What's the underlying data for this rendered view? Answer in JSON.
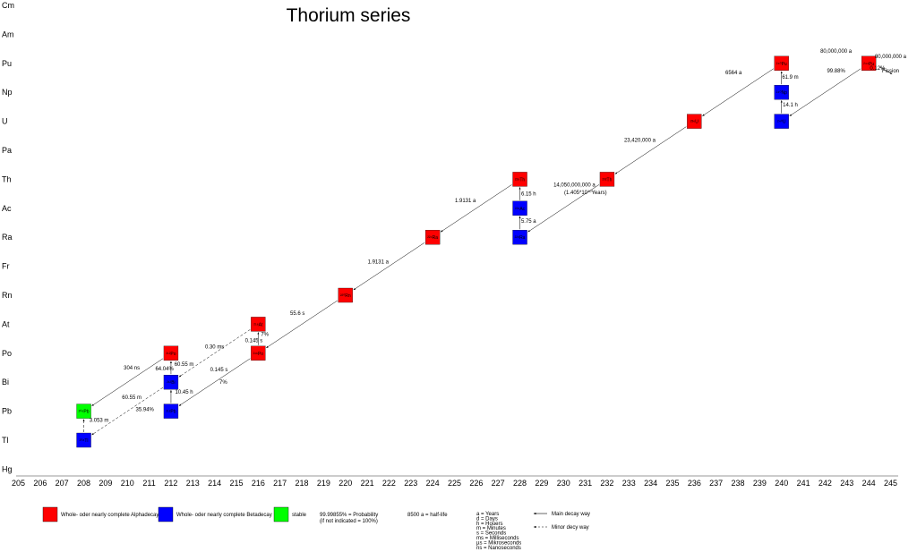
{
  "title": "Thorium series",
  "colors": {
    "alpha": "#ff0000",
    "beta": "#0000ff",
    "stable": "#00ff00",
    "fission_text": "#ff00cc"
  },
  "elements": [
    "Cm",
    "Am",
    "Pu",
    "Np",
    "U",
    "Pa",
    "Th",
    "Ac",
    "Ra",
    "Fr",
    "Rn",
    "At",
    "Po",
    "Bi",
    "Pb",
    "Tl",
    "Hg"
  ],
  "mass_numbers": [
    205,
    206,
    207,
    208,
    209,
    210,
    211,
    212,
    213,
    214,
    215,
    216,
    217,
    218,
    219,
    220,
    221,
    222,
    223,
    224,
    225,
    226,
    227,
    228,
    229,
    230,
    231,
    232,
    233,
    234,
    235,
    236,
    237,
    238,
    239,
    240,
    241,
    242,
    243,
    244,
    245
  ],
  "nuclides": [
    {
      "mass": 244,
      "el": "Pu",
      "kind": "alpha",
      "label": "²⁴⁴Pu"
    },
    {
      "mass": 240,
      "el": "Pu",
      "kind": "alpha",
      "label": "²⁴⁰Pu"
    },
    {
      "mass": 240,
      "el": "Np",
      "kind": "beta",
      "label": "²⁴⁰Np"
    },
    {
      "mass": 240,
      "el": "U",
      "kind": "beta",
      "label": "²⁴⁰U"
    },
    {
      "mass": 236,
      "el": "U",
      "kind": "alpha",
      "label": "²³⁶U"
    },
    {
      "mass": 232,
      "el": "Th",
      "kind": "alpha",
      "label": "²³²Th"
    },
    {
      "mass": 228,
      "el": "Th",
      "kind": "alpha",
      "label": "²²⁸Th"
    },
    {
      "mass": 228,
      "el": "Ac",
      "kind": "beta",
      "label": "²²⁸Ac"
    },
    {
      "mass": 228,
      "el": "Ra",
      "kind": "beta",
      "label": "²²⁸Ra"
    },
    {
      "mass": 224,
      "el": "Ra",
      "kind": "alpha",
      "label": "²²⁴Ra"
    },
    {
      "mass": 220,
      "el": "Rn",
      "kind": "alpha",
      "label": "²²⁰Rn"
    },
    {
      "mass": 216,
      "el": "Po",
      "kind": "alpha",
      "label": "²¹⁶Po"
    },
    {
      "mass": 216,
      "el": "At",
      "kind": "alpha",
      "label": "²¹⁶At"
    },
    {
      "mass": 212,
      "el": "Po",
      "kind": "alpha",
      "label": "²¹²Po"
    },
    {
      "mass": 212,
      "el": "Bi",
      "kind": "beta",
      "label": "²¹²Bi"
    },
    {
      "mass": 212,
      "el": "Pb",
      "kind": "beta",
      "label": "²¹²Pb"
    },
    {
      "mass": 208,
      "el": "Pb",
      "kind": "stable",
      "label": "²⁰⁸Pb"
    },
    {
      "mass": 208,
      "el": "Tl",
      "kind": "beta",
      "label": "²⁰⁸Tl"
    }
  ],
  "decays": [
    {
      "from": [
        244,
        "Pu"
      ],
      "to": [
        240,
        "U"
      ],
      "style": "main"
    },
    {
      "from": [
        240,
        "U"
      ],
      "to": [
        240,
        "Np"
      ],
      "style": "main"
    },
    {
      "from": [
        240,
        "Np"
      ],
      "to": [
        240,
        "Pu"
      ],
      "style": "main"
    },
    {
      "from": [
        240,
        "Pu"
      ],
      "to": [
        236,
        "U"
      ],
      "style": "main"
    },
    {
      "from": [
        236,
        "U"
      ],
      "to": [
        232,
        "Th"
      ],
      "style": "main"
    },
    {
      "from": [
        232,
        "Th"
      ],
      "to": [
        228,
        "Ra"
      ],
      "style": "main"
    },
    {
      "from": [
        228,
        "Ra"
      ],
      "to": [
        228,
        "Ac"
      ],
      "style": "main"
    },
    {
      "from": [
        228,
        "Ac"
      ],
      "to": [
        228,
        "Th"
      ],
      "style": "main"
    },
    {
      "from": [
        228,
        "Th"
      ],
      "to": [
        224,
        "Ra"
      ],
      "style": "main"
    },
    {
      "from": [
        224,
        "Ra"
      ],
      "to": [
        220,
        "Rn"
      ],
      "style": "main"
    },
    {
      "from": [
        220,
        "Rn"
      ],
      "to": [
        216,
        "Po"
      ],
      "style": "main"
    },
    {
      "from": [
        216,
        "Po"
      ],
      "to": [
        216,
        "At"
      ],
      "style": "main"
    },
    {
      "from": [
        216,
        "Po"
      ],
      "to": [
        212,
        "Pb"
      ],
      "style": "main"
    },
    {
      "from": [
        212,
        "Pb"
      ],
      "to": [
        212,
        "Bi"
      ],
      "style": "main"
    },
    {
      "from": [
        212,
        "Bi"
      ],
      "to": [
        212,
        "Po"
      ],
      "style": "main"
    },
    {
      "from": [
        212,
        "Po"
      ],
      "to": [
        208,
        "Pb"
      ],
      "style": "main"
    },
    {
      "from": [
        216,
        "At"
      ],
      "to": [
        212,
        "Bi"
      ],
      "style": "minor"
    },
    {
      "from": [
        212,
        "Bi"
      ],
      "to": [
        208,
        "Tl"
      ],
      "style": "minor"
    },
    {
      "from": [
        208,
        "Tl"
      ],
      "to": [
        208,
        "Pb"
      ],
      "style": "minor"
    }
  ],
  "annotations": [
    {
      "text": "80,000,000 a",
      "mass": 242.5,
      "el": "Pu",
      "dy": -12
    },
    {
      "text": "0.12%",
      "mass": 244.4,
      "el": "Pu",
      "dy": 7
    },
    {
      "text": "99.88%",
      "mass": 242.5,
      "el": "Pu",
      "dy": 10
    },
    {
      "text": "80,000,000 a",
      "mass": 245,
      "el": "Pu",
      "dy": -6
    },
    {
      "text": "Fission",
      "mass": 245,
      "el": "Pu",
      "dy": 10,
      "fission": true
    },
    {
      "text": "61.9 m",
      "mass": 240.4,
      "el": "Pu",
      "dy": 17
    },
    {
      "text": "14.1 h",
      "mass": 240.4,
      "el": "Np",
      "dy": 16
    },
    {
      "text": "6564 a",
      "mass": 237.8,
      "el": "Pu",
      "dy": 12
    },
    {
      "text": "23,420,000 a",
      "mass": 233.5,
      "el": "U",
      "dy": 23
    },
    {
      "text": "14,050,000,000 a",
      "mass": 230.5,
      "el": "Th",
      "dy": 8
    },
    {
      "text": "6.15 h",
      "mass": 228.4,
      "el": "Th",
      "dy": 18
    },
    {
      "text": "5.75 a",
      "mass": 228.4,
      "el": "Ac",
      "dy": 16
    },
    {
      "text": "1.9131 a",
      "mass": 225.5,
      "el": "Ac",
      "dy": -7
    },
    {
      "text": "1.9131 a",
      "mass": 221.5,
      "el": "Fr",
      "dy": -3
    },
    {
      "text": "55.6 s",
      "mass": 217.8,
      "el": "Rn",
      "dy": 22
    },
    {
      "text": "0.30 ms",
      "mass": 214,
      "el": "At",
      "dy": 27
    },
    {
      "text": "0.145 s",
      "mass": 215.8,
      "el": "At",
      "dy": 20
    },
    {
      "text": "7%",
      "mass": 216.3,
      "el": "At",
      "dy": 13
    },
    {
      "text": "0.145 s",
      "mass": 214.2,
      "el": "Po",
      "dy": 20
    },
    {
      "text": "7%",
      "mass": 214.4,
      "el": "Bi",
      "dy": 2
    },
    {
      "text": "304 ns",
      "mass": 210.2,
      "el": "Po",
      "dy": 18
    },
    {
      "text": "64.04%",
      "mass": 211.7,
      "el": "Po",
      "dy": 19
    },
    {
      "text": "60.55 m",
      "mass": 212.6,
      "el": "Po",
      "dy": 14
    },
    {
      "text": "10.45 h",
      "mass": 212.6,
      "el": "Bi",
      "dy": 13
    },
    {
      "text": "60.55 m",
      "mass": 210.2,
      "el": "Bi",
      "dy": 19
    },
    {
      "text": "35.94%",
      "mass": 210.8,
      "el": "Pb",
      "dy": 0
    },
    {
      "text": "3.053 m",
      "mass": 208.7,
      "el": "Pb",
      "dy": 12
    }
  ],
  "footnote_10": "(1.405*10",
  "footnote_exp": "10",
  "footnote_tail": "Years)",
  "legend": {
    "alpha": "Whole- oder nearly complete Alphadecay",
    "beta": "Whole- oder nearly complete Betadecay",
    "stable": "stable",
    "probability_1": "99.99855% = Probability",
    "probability_2": "(if not indicated = 100%)",
    "halflife": "8500 a = half-life",
    "units": [
      "a = Years",
      "d = Days",
      "h = Houers",
      "m = Minutes",
      "s = Seconds",
      "ms = Milliseconds",
      "µs = Mikroseconds",
      "ns = Nanoseconds"
    ],
    "main_way": "Main decay way",
    "minor_way": "Minor decy way"
  }
}
